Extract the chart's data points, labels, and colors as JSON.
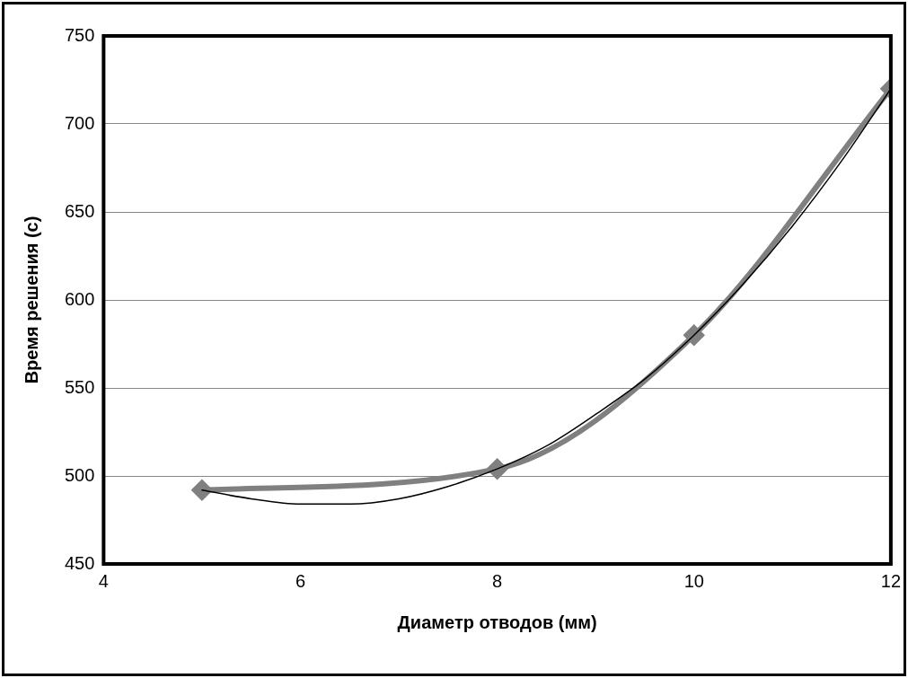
{
  "chart_data": {
    "type": "line",
    "xlabel": "Диаметр отводов (мм)",
    "ylabel": "Время решения (с)",
    "xlim": [
      4,
      12
    ],
    "xticks": [
      4,
      6,
      8,
      10,
      12
    ],
    "ylim": [
      450,
      750
    ],
    "yticks": [
      450,
      500,
      550,
      600,
      650,
      700,
      750
    ],
    "grid": "y",
    "line_style": "solid",
    "series": [
      {
        "color": "#808080",
        "marker": "diamond",
        "x": [
          5,
          8,
          10,
          12
        ],
        "values": [
          492,
          504,
          580,
          720
        ]
      },
      {
        "color": "#000000",
        "marker": "none",
        "x": [
          5,
          5.5,
          6,
          6.5,
          7,
          7.5,
          8,
          8.5,
          9,
          9.5,
          10,
          10.5,
          11,
          11.5,
          12
        ],
        "values": [
          492,
          487,
          484,
          484,
          487,
          494,
          504,
          517,
          535,
          555,
          580,
          609,
          642,
          679,
          720
        ]
      }
    ]
  }
}
